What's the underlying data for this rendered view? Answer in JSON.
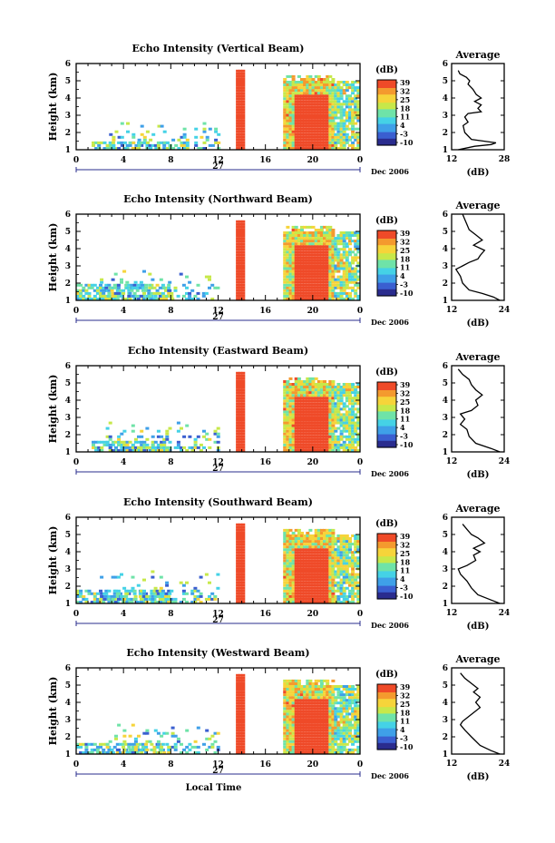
{
  "chart_data": [
    {
      "type": "heatmap",
      "title": "Echo Intensity (Vertical Beam)",
      "ylabel": "Height (km)",
      "y_ticks": [
        "1",
        "2",
        "3",
        "4",
        "5",
        "6"
      ],
      "x_ticks": [
        "0",
        "4",
        "8",
        "12",
        "16",
        "20",
        "0"
      ],
      "date_label": "27",
      "date_right": "Dec 2006",
      "xlim": [
        0,
        24
      ],
      "ylim": [
        1,
        6
      ],
      "colorbar": {
        "unit": "(dB)",
        "ticks": [
          "39",
          "32",
          "25",
          "18",
          "11",
          "4",
          "-3",
          "-10"
        ]
      },
      "regions": [
        {
          "name": "sparse-echo",
          "x": [
            1.3,
            8.0
          ],
          "y_top": 1.4
        },
        {
          "name": "isolated-cells",
          "x": [
            2.3,
            12.0
          ],
          "y_top": 2.6
        },
        {
          "name": "convective-column",
          "x": [
            13.5,
            14.2
          ],
          "y_top": 5.5,
          "max_db": 39
        },
        {
          "name": "main-rain",
          "x": [
            17.5,
            21.8
          ],
          "y_top": 5.3,
          "max_db": 39
        },
        {
          "name": "trailing-echo",
          "x": [
            21.8,
            23.8
          ],
          "y_top": 5.0
        }
      ],
      "profile": {
        "title": "Average",
        "xlabel": "(dB)",
        "x_ticks": [
          "12",
          "28"
        ],
        "xlim": [
          12,
          28
        ],
        "points": [
          [
            14.0,
            1.0
          ],
          [
            19.0,
            1.2
          ],
          [
            24.0,
            1.3
          ],
          [
            25.5,
            1.4
          ],
          [
            18.0,
            1.6
          ],
          [
            16.0,
            2.0
          ],
          [
            15.5,
            2.4
          ],
          [
            17.0,
            2.6
          ],
          [
            16.0,
            2.9
          ],
          [
            17.0,
            3.1
          ],
          [
            21.0,
            3.2
          ],
          [
            20.0,
            3.4
          ],
          [
            21.0,
            3.6
          ],
          [
            19.0,
            3.8
          ],
          [
            21.0,
            4.0
          ],
          [
            19.5,
            4.2
          ],
          [
            18.5,
            4.5
          ],
          [
            17.0,
            4.8
          ],
          [
            17.5,
            5.0
          ],
          [
            16.5,
            5.2
          ],
          [
            14.5,
            5.4
          ],
          [
            14.0,
            5.6
          ]
        ]
      }
    },
    {
      "type": "heatmap",
      "title": "Echo Intensity (Northward Beam)",
      "ylabel": "Height (km)",
      "y_ticks": [
        "1",
        "2",
        "3",
        "4",
        "5",
        "6"
      ],
      "x_ticks": [
        "0",
        "4",
        "8",
        "12",
        "16",
        "20",
        "0"
      ],
      "date_label": "27",
      "date_right": "Dec 2006",
      "xlim": [
        0,
        24
      ],
      "ylim": [
        1,
        6
      ],
      "colorbar": {
        "unit": "(dB)",
        "ticks": [
          "39",
          "32",
          "25",
          "18",
          "11",
          "4",
          "-3",
          "-10"
        ]
      },
      "regions": [
        {
          "name": "sparse-echo",
          "x": [
            0.0,
            8.0
          ],
          "y_top": 1.8
        },
        {
          "name": "isolated-cells",
          "x": [
            2.0,
            12.0
          ],
          "y_top": 3.0
        },
        {
          "name": "convective-column",
          "x": [
            13.5,
            14.2
          ],
          "y_top": 5.5,
          "max_db": 39
        },
        {
          "name": "main-rain",
          "x": [
            17.5,
            21.8
          ],
          "y_top": 5.3,
          "max_db": 39
        },
        {
          "name": "trailing-echo",
          "x": [
            21.8,
            23.8
          ],
          "y_top": 5.0
        }
      ],
      "profile": {
        "title": "Average",
        "xlabel": "(dB)",
        "x_ticks": [
          "12",
          "24"
        ],
        "xlim": [
          12,
          24
        ],
        "points": [
          [
            23.0,
            1.0
          ],
          [
            21.5,
            1.2
          ],
          [
            19.0,
            1.4
          ],
          [
            16.0,
            1.6
          ],
          [
            14.5,
            2.0
          ],
          [
            14.0,
            2.4
          ],
          [
            13.0,
            2.8
          ],
          [
            14.5,
            3.0
          ],
          [
            16.0,
            3.2
          ],
          [
            18.0,
            3.4
          ],
          [
            18.5,
            3.6
          ],
          [
            19.5,
            3.9
          ],
          [
            17.0,
            4.2
          ],
          [
            19.0,
            4.5
          ],
          [
            17.5,
            4.8
          ],
          [
            16.0,
            5.1
          ],
          [
            15.5,
            5.4
          ],
          [
            15.0,
            5.7
          ],
          [
            14.5,
            6.0
          ]
        ]
      }
    },
    {
      "type": "heatmap",
      "title": "Echo Intensity (Eastward Beam)",
      "ylabel": "Height (km)",
      "y_ticks": [
        "1",
        "2",
        "3",
        "4",
        "5",
        "6"
      ],
      "x_ticks": [
        "0",
        "4",
        "8",
        "12",
        "16",
        "20",
        "0"
      ],
      "date_label": "27",
      "date_right": "Dec 2006",
      "xlim": [
        0,
        24
      ],
      "ylim": [
        1,
        6
      ],
      "colorbar": {
        "unit": "(dB)",
        "ticks": [
          "39",
          "32",
          "25",
          "18",
          "11",
          "4",
          "-3",
          "-10"
        ]
      },
      "regions": [
        {
          "name": "sparse-echo",
          "x": [
            1.3,
            8.0
          ],
          "y_top": 1.5
        },
        {
          "name": "isolated-cells",
          "x": [
            2.5,
            12.0
          ],
          "y_top": 2.8
        },
        {
          "name": "convective-column",
          "x": [
            13.5,
            14.2
          ],
          "y_top": 5.5,
          "max_db": 39
        },
        {
          "name": "main-rain",
          "x": [
            17.5,
            21.8
          ],
          "y_top": 5.3,
          "max_db": 39
        },
        {
          "name": "trailing-echo",
          "x": [
            21.8,
            23.8
          ],
          "y_top": 5.0
        }
      ],
      "profile": {
        "title": "Average",
        "xlabel": "(dB)",
        "x_ticks": [
          "12",
          "24"
        ],
        "xlim": [
          12,
          24
        ],
        "points": [
          [
            23.0,
            1.0
          ],
          [
            21.0,
            1.2
          ],
          [
            17.5,
            1.5
          ],
          [
            16.0,
            1.9
          ],
          [
            15.5,
            2.3
          ],
          [
            14.0,
            2.6
          ],
          [
            15.0,
            2.9
          ],
          [
            14.0,
            3.2
          ],
          [
            16.5,
            3.4
          ],
          [
            18.0,
            3.7
          ],
          [
            17.5,
            4.0
          ],
          [
            19.0,
            4.3
          ],
          [
            17.5,
            4.6
          ],
          [
            16.5,
            4.9
          ],
          [
            16.0,
            5.2
          ],
          [
            14.5,
            5.5
          ],
          [
            13.5,
            5.8
          ]
        ]
      }
    },
    {
      "type": "heatmap",
      "title": "Echo Intensity (Southward Beam)",
      "ylabel": "Height (km)",
      "y_ticks": [
        "1",
        "2",
        "3",
        "4",
        "5",
        "6"
      ],
      "x_ticks": [
        "0",
        "4",
        "8",
        "12",
        "16",
        "20",
        "0"
      ],
      "date_label": "27",
      "date_right": "Dec 2006",
      "xlim": [
        0,
        24
      ],
      "ylim": [
        1,
        6
      ],
      "colorbar": {
        "unit": "(dB)",
        "ticks": [
          "39",
          "32",
          "25",
          "18",
          "11",
          "4",
          "-3",
          "-10"
        ]
      },
      "regions": [
        {
          "name": "sparse-echo",
          "x": [
            0.0,
            8.0
          ],
          "y_top": 1.7
        },
        {
          "name": "isolated-cells",
          "x": [
            2.0,
            12.0
          ],
          "y_top": 3.0
        },
        {
          "name": "convective-column",
          "x": [
            13.5,
            14.2
          ],
          "y_top": 5.5,
          "max_db": 39
        },
        {
          "name": "main-rain",
          "x": [
            17.5,
            21.8
          ],
          "y_top": 5.3,
          "max_db": 39
        },
        {
          "name": "trailing-echo",
          "x": [
            21.8,
            23.8
          ],
          "y_top": 5.0
        }
      ],
      "profile": {
        "title": "Average",
        "xlabel": "(dB)",
        "x_ticks": [
          "12",
          "24"
        ],
        "xlim": [
          12,
          24
        ],
        "points": [
          [
            23.0,
            1.0
          ],
          [
            21.0,
            1.2
          ],
          [
            18.0,
            1.5
          ],
          [
            16.5,
            1.9
          ],
          [
            15.5,
            2.3
          ],
          [
            14.0,
            2.7
          ],
          [
            13.5,
            3.0
          ],
          [
            15.5,
            3.2
          ],
          [
            17.5,
            3.5
          ],
          [
            17.0,
            3.8
          ],
          [
            18.5,
            4.0
          ],
          [
            17.0,
            4.2
          ],
          [
            19.5,
            4.5
          ],
          [
            18.0,
            4.8
          ],
          [
            16.5,
            5.0
          ],
          [
            15.5,
            5.3
          ],
          [
            14.5,
            5.6
          ]
        ]
      }
    },
    {
      "type": "heatmap",
      "title": "Echo Intensity (Westward Beam)",
      "ylabel": "Height (km)",
      "y_ticks": [
        "1",
        "2",
        "3",
        "4",
        "5",
        "6"
      ],
      "x_ticks": [
        "0",
        "4",
        "8",
        "12",
        "16",
        "20",
        "0"
      ],
      "date_label": "27",
      "date_right": "Dec 2006",
      "xlabel": "Local Time",
      "xlim": [
        0,
        24
      ],
      "ylim": [
        1,
        6
      ],
      "colorbar": {
        "unit": "(dB)",
        "ticks": [
          "39",
          "32",
          "25",
          "18",
          "11",
          "4",
          "-3",
          "-10"
        ]
      },
      "regions": [
        {
          "name": "sparse-echo",
          "x": [
            0.0,
            8.0
          ],
          "y_top": 1.5
        },
        {
          "name": "isolated-cells",
          "x": [
            2.5,
            12.0
          ],
          "y_top": 2.8
        },
        {
          "name": "convective-column",
          "x": [
            13.5,
            14.2
          ],
          "y_top": 5.5,
          "max_db": 39
        },
        {
          "name": "main-rain",
          "x": [
            17.5,
            21.8
          ],
          "y_top": 5.3,
          "max_db": 39
        },
        {
          "name": "trailing-echo",
          "x": [
            21.8,
            23.8
          ],
          "y_top": 5.0
        }
      ],
      "profile": {
        "title": "Average",
        "xlabel": "(dB)",
        "x_ticks": [
          "12",
          "24"
        ],
        "xlim": [
          12,
          24
        ],
        "points": [
          [
            23.0,
            1.0
          ],
          [
            21.0,
            1.2
          ],
          [
            18.5,
            1.5
          ],
          [
            16.5,
            2.0
          ],
          [
            15.0,
            2.4
          ],
          [
            14.0,
            2.7
          ],
          [
            14.5,
            2.9
          ],
          [
            15.5,
            3.1
          ],
          [
            17.0,
            3.4
          ],
          [
            18.5,
            3.7
          ],
          [
            17.5,
            4.0
          ],
          [
            18.5,
            4.3
          ],
          [
            17.0,
            4.6
          ],
          [
            18.0,
            4.8
          ],
          [
            16.5,
            5.1
          ],
          [
            15.0,
            5.4
          ],
          [
            14.0,
            5.7
          ]
        ]
      }
    }
  ],
  "colors": {
    "scale": [
      "#2a2c8e",
      "#3a5fd0",
      "#3fa0e8",
      "#45d2e6",
      "#6fe3a8",
      "#c7e84a",
      "#f6d43a",
      "#f49a2e",
      "#ef4a28"
    ]
  }
}
